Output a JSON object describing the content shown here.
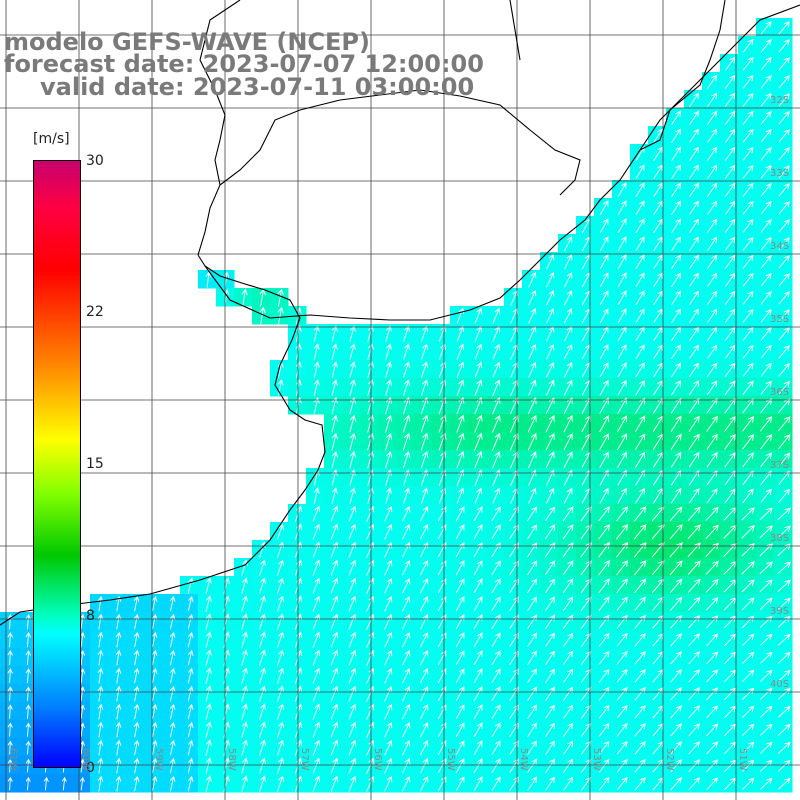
{
  "title": {
    "line1": "modelo GEFS-WAVE (NCEP)",
    "line2": "forecast date: 2023-07-07 12:00:00",
    "line3": "valid date: 2023-07-11 03:00:00"
  },
  "colorbar": {
    "unit": "[m/s]",
    "ticks": [
      "30",
      "22",
      "15",
      "8",
      "0"
    ],
    "range": [
      0,
      30
    ],
    "colors": [
      "#0000ff",
      "#0080ff",
      "#00ffff",
      "#00c800",
      "#80ff00",
      "#ffff00",
      "#ff8000",
      "#ff0000",
      "#c8006e"
    ]
  },
  "axes": {
    "longitude_labels": [
      "61W",
      "60W",
      "59W",
      "58W",
      "57W",
      "56W",
      "55W",
      "54W",
      "53W",
      "52W",
      "51W"
    ],
    "latitude_labels": [
      "32S",
      "33S",
      "34S",
      "35S",
      "36S",
      "37S",
      "38S",
      "39S",
      "40S"
    ],
    "grid": true
  },
  "colors": {
    "title_gray": "#7a7a7a",
    "coast": "#000000",
    "grid": "#444444",
    "arrows": "#ffffff"
  }
}
